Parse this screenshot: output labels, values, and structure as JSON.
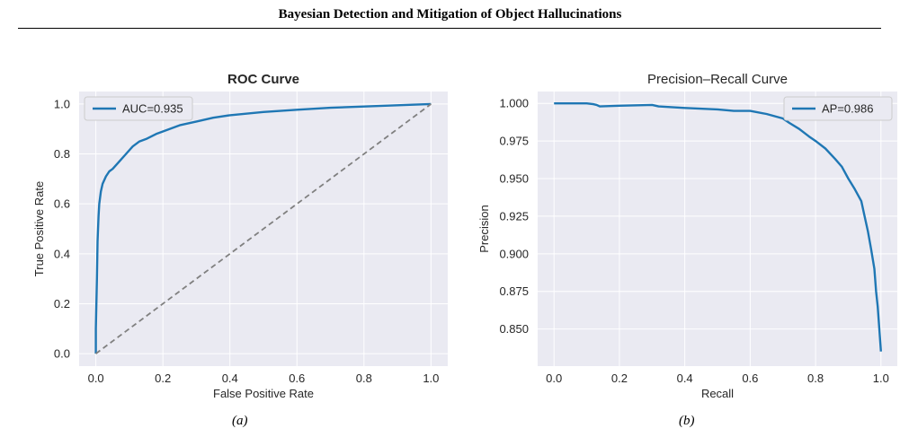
{
  "header": {
    "title": "Bayesian Detection and Mitigation of Object Hallucinations"
  },
  "captions": {
    "a": "(a)",
    "b": "(b)"
  },
  "colors": {
    "plot_bg": "#eaeaf2",
    "grid": "#ffffff",
    "line": "#1f77b4",
    "diagonal": "#808080"
  },
  "chart_data": [
    {
      "type": "line",
      "title": "ROC Curve",
      "xlabel": "False Positive Rate",
      "ylabel": "True Positive Rate",
      "xlim": [
        -0.05,
        1.05
      ],
      "ylim": [
        -0.05,
        1.05
      ],
      "xticks": [
        0.0,
        0.2,
        0.4,
        0.6,
        0.8,
        1.0
      ],
      "yticks": [
        0.0,
        0.2,
        0.4,
        0.6,
        0.8,
        1.0
      ],
      "xtick_labels": [
        "0.0",
        "0.2",
        "0.4",
        "0.6",
        "0.8",
        "1.0"
      ],
      "ytick_labels": [
        "0.0",
        "0.2",
        "0.4",
        "0.6",
        "0.8",
        "1.0"
      ],
      "grid": true,
      "legend": {
        "position": "top-left",
        "entries": [
          "AUC=0.935"
        ]
      },
      "series": [
        {
          "name": "AUC=0.935",
          "x": [
            0.0,
            0.0,
            0.003,
            0.005,
            0.008,
            0.01,
            0.015,
            0.02,
            0.03,
            0.04,
            0.05,
            0.07,
            0.09,
            0.11,
            0.13,
            0.15,
            0.18,
            0.2,
            0.25,
            0.3,
            0.35,
            0.4,
            0.5,
            0.6,
            0.7,
            0.8,
            0.9,
            1.0
          ],
          "y": [
            0.0,
            0.1,
            0.3,
            0.45,
            0.55,
            0.6,
            0.65,
            0.68,
            0.71,
            0.73,
            0.74,
            0.77,
            0.8,
            0.83,
            0.85,
            0.86,
            0.88,
            0.89,
            0.915,
            0.93,
            0.945,
            0.955,
            0.968,
            0.977,
            0.985,
            0.99,
            0.995,
            1.0
          ]
        },
        {
          "x": [
            0.0,
            1.0
          ],
          "y": [
            0.0,
            1.0
          ],
          "style": "dashed"
        }
      ]
    },
    {
      "type": "line",
      "title": "Precision–Recall Curve",
      "xlabel": "Recall",
      "ylabel": "Precision",
      "xlim": [
        -0.05,
        1.05
      ],
      "ylim": [
        0.8253,
        1.0079
      ],
      "xticks": [
        0.0,
        0.2,
        0.4,
        0.6,
        0.8,
        1.0
      ],
      "yticks": [
        0.85,
        0.875,
        0.9,
        0.925,
        0.95,
        0.975,
        1.0
      ],
      "xtick_labels": [
        "0.0",
        "0.2",
        "0.4",
        "0.6",
        "0.8",
        "1.0"
      ],
      "ytick_labels": [
        "0.850",
        "0.875",
        "0.900",
        "0.925",
        "0.950",
        "0.975",
        "1.000"
      ],
      "grid": true,
      "legend": {
        "position": "top-right",
        "entries": [
          "AP=0.986"
        ]
      },
      "series": [
        {
          "name": "AP=0.986",
          "x": [
            0.0,
            0.1,
            0.12,
            0.13,
            0.14,
            0.2,
            0.3,
            0.32,
            0.4,
            0.5,
            0.55,
            0.6,
            0.65,
            0.7,
            0.72,
            0.75,
            0.78,
            0.8,
            0.83,
            0.86,
            0.88,
            0.9,
            0.92,
            0.94,
            0.95,
            0.96,
            0.97,
            0.98,
            0.985,
            0.99,
            0.995,
            1.0
          ],
          "y": [
            1.0,
            1.0,
            0.9995,
            0.999,
            0.998,
            0.9985,
            0.999,
            0.998,
            0.997,
            0.996,
            0.995,
            0.995,
            0.993,
            0.99,
            0.987,
            0.983,
            0.978,
            0.975,
            0.97,
            0.963,
            0.958,
            0.95,
            0.943,
            0.935,
            0.925,
            0.915,
            0.903,
            0.89,
            0.875,
            0.865,
            0.85,
            0.835
          ]
        }
      ]
    }
  ]
}
